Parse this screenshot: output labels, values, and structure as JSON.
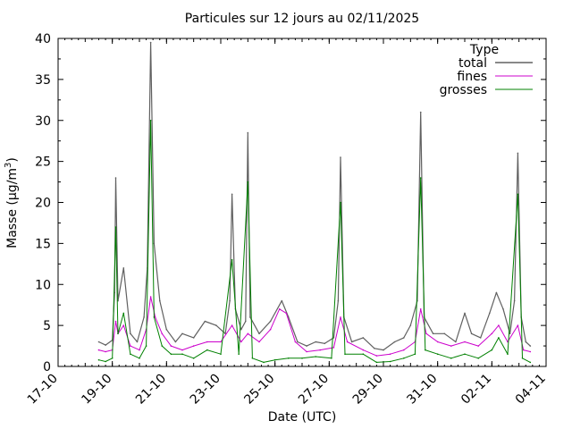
{
  "chart_data": {
    "type": "line",
    "title": "Particules sur 12 jours au 02/11/2025",
    "xlabel": "Date (UTC)",
    "ylabel": "Masse (µg/m³)",
    "ylabel_main": "Masse (µg/m",
    "ylabel_sup": "3",
    "ylabel_close": ")",
    "xlim": [
      "2025-10-17",
      "2025-11-04"
    ],
    "ylim": [
      0,
      40
    ],
    "x_ticks": [
      "17-10",
      "19-10",
      "21-10",
      "23-10",
      "25-10",
      "27-10",
      "29-10",
      "31-10",
      "02-11",
      "04-11"
    ],
    "y_ticks": [
      "0",
      "5",
      "10",
      "15",
      "20",
      "25",
      "30",
      "35",
      "40"
    ],
    "legend": {
      "title": "Type",
      "placement": "top-right"
    },
    "grid": false,
    "series": [
      {
        "name": "total",
        "color": "#606060",
        "points": [
          [
            "2025-10-18 12:00",
            3.0
          ],
          [
            "2025-10-18 18:00",
            2.6
          ],
          [
            "2025-10-19 00:00",
            3.2
          ],
          [
            "2025-10-19 02:00",
            9.0
          ],
          [
            "2025-10-19 03:00",
            23.0
          ],
          [
            "2025-10-19 05:00",
            8.0
          ],
          [
            "2025-10-19 10:00",
            12.0
          ],
          [
            "2025-10-19 16:00",
            4.0
          ],
          [
            "2025-10-19 22:00",
            3.0
          ],
          [
            "2025-10-20 04:00",
            6.0
          ],
          [
            "2025-10-20 07:00",
            12.0
          ],
          [
            "2025-10-20 10:00",
            39.5
          ],
          [
            "2025-10-20 13:00",
            15.0
          ],
          [
            "2025-10-20 18:00",
            8.0
          ],
          [
            "2025-10-21 00:00",
            4.5
          ],
          [
            "2025-10-21 08:00",
            3.0
          ],
          [
            "2025-10-21 14:00",
            4.0
          ],
          [
            "2025-10-22 00:00",
            3.5
          ],
          [
            "2025-10-22 10:00",
            5.5
          ],
          [
            "2025-10-22 20:00",
            5.0
          ],
          [
            "2025-10-23 04:00",
            4.0
          ],
          [
            "2025-10-23 08:00",
            8.0
          ],
          [
            "2025-10-23 10:00",
            21.0
          ],
          [
            "2025-10-23 13:00",
            7.0
          ],
          [
            "2025-10-23 18:00",
            4.5
          ],
          [
            "2025-10-23 22:00",
            5.5
          ],
          [
            "2025-10-24 00:00",
            28.5
          ],
          [
            "2025-10-24 02:00",
            6.0
          ],
          [
            "2025-10-24 10:00",
            4.0
          ],
          [
            "2025-10-24 20:00",
            5.5
          ],
          [
            "2025-10-25 06:00",
            8.0
          ],
          [
            "2025-10-25 12:00",
            6.0
          ],
          [
            "2025-10-25 20:00",
            3.0
          ],
          [
            "2025-10-26 04:00",
            2.5
          ],
          [
            "2025-10-26 12:00",
            3.0
          ],
          [
            "2025-10-26 20:00",
            2.8
          ],
          [
            "2025-10-27 04:00",
            3.5
          ],
          [
            "2025-10-27 08:00",
            8.0
          ],
          [
            "2025-10-27 10:00",
            25.5
          ],
          [
            "2025-10-27 13:00",
            6.0
          ],
          [
            "2025-10-27 20:00",
            3.0
          ],
          [
            "2025-10-28 06:00",
            3.5
          ],
          [
            "2025-10-28 16:00",
            2.2
          ],
          [
            "2025-10-29 00:00",
            2.0
          ],
          [
            "2025-10-29 10:00",
            3.0
          ],
          [
            "2025-10-29 18:00",
            3.5
          ],
          [
            "2025-10-30 00:00",
            5.0
          ],
          [
            "2025-10-30 06:00",
            8.0
          ],
          [
            "2025-10-30 09:00",
            31.0
          ],
          [
            "2025-10-30 12:00",
            6.0
          ],
          [
            "2025-10-30 20:00",
            4.0
          ],
          [
            "2025-10-31 06:00",
            4.0
          ],
          [
            "2025-10-31 16:00",
            3.0
          ],
          [
            "2025-11-01 00:00",
            6.5
          ],
          [
            "2025-11-01 06:00",
            4.0
          ],
          [
            "2025-11-01 14:00",
            3.5
          ],
          [
            "2025-11-01 22:00",
            6.5
          ],
          [
            "2025-11-02 04:00",
            9.0
          ],
          [
            "2025-11-02 10:00",
            7.0
          ],
          [
            "2025-11-02 16:00",
            4.0
          ],
          [
            "2025-11-02 20:00",
            8.0
          ],
          [
            "2025-11-02 23:00",
            26.0
          ],
          [
            "2025-11-03 02:00",
            6.0
          ],
          [
            "2025-11-03 06:00",
            3.0
          ],
          [
            "2025-11-03 10:00",
            2.5
          ]
        ]
      },
      {
        "name": "fines",
        "color": "#cc00cc",
        "points": [
          [
            "2025-10-18 12:00",
            2.0
          ],
          [
            "2025-10-18 18:00",
            1.8
          ],
          [
            "2025-10-19 00:00",
            2.0
          ],
          [
            "2025-10-19 03:00",
            5.5
          ],
          [
            "2025-10-19 05:00",
            4.0
          ],
          [
            "2025-10-19 10:00",
            5.0
          ],
          [
            "2025-10-19 16:00",
            2.5
          ],
          [
            "2025-10-20 00:00",
            2.0
          ],
          [
            "2025-10-20 06:00",
            4.5
          ],
          [
            "2025-10-20 10:00",
            8.5
          ],
          [
            "2025-10-20 14:00",
            6.0
          ],
          [
            "2025-10-20 20:00",
            4.0
          ],
          [
            "2025-10-21 04:00",
            2.5
          ],
          [
            "2025-10-21 14:00",
            2.0
          ],
          [
            "2025-10-22 00:00",
            2.5
          ],
          [
            "2025-10-22 12:00",
            3.0
          ],
          [
            "2025-10-23 00:00",
            3.0
          ],
          [
            "2025-10-23 10:00",
            5.0
          ],
          [
            "2025-10-23 18:00",
            3.0
          ],
          [
            "2025-10-24 00:00",
            4.0
          ],
          [
            "2025-10-24 10:00",
            3.0
          ],
          [
            "2025-10-24 20:00",
            4.5
          ],
          [
            "2025-10-25 04:00",
            7.0
          ],
          [
            "2025-10-25 10:00",
            6.5
          ],
          [
            "2025-10-25 18:00",
            3.0
          ],
          [
            "2025-10-26 04:00",
            1.8
          ],
          [
            "2025-10-26 16:00",
            2.0
          ],
          [
            "2025-10-27 04:00",
            2.3
          ],
          [
            "2025-10-27 10:00",
            6.0
          ],
          [
            "2025-10-27 16:00",
            3.0
          ],
          [
            "2025-10-28 06:00",
            2.0
          ],
          [
            "2025-10-28 18:00",
            1.3
          ],
          [
            "2025-10-29 06:00",
            1.5
          ],
          [
            "2025-10-29 18:00",
            2.0
          ],
          [
            "2025-10-30 04:00",
            3.0
          ],
          [
            "2025-10-30 09:00",
            7.0
          ],
          [
            "2025-10-30 14:00",
            4.0
          ],
          [
            "2025-10-31 00:00",
            3.0
          ],
          [
            "2025-10-31 12:00",
            2.5
          ],
          [
            "2025-11-01 00:00",
            3.0
          ],
          [
            "2025-11-01 12:00",
            2.5
          ],
          [
            "2025-11-02 00:00",
            4.0
          ],
          [
            "2025-11-02 06:00",
            5.0
          ],
          [
            "2025-11-02 14:00",
            3.0
          ],
          [
            "2025-11-02 23:00",
            5.0
          ],
          [
            "2025-11-03 04:00",
            2.0
          ],
          [
            "2025-11-03 10:00",
            1.8
          ]
        ]
      },
      {
        "name": "grosses",
        "color": "#008000",
        "points": [
          [
            "2025-10-18 12:00",
            0.8
          ],
          [
            "2025-10-18 18:00",
            0.6
          ],
          [
            "2025-10-19 00:00",
            1.0
          ],
          [
            "2025-10-19 03:00",
            17.0
          ],
          [
            "2025-10-19 05:00",
            4.0
          ],
          [
            "2025-10-19 10:00",
            6.5
          ],
          [
            "2025-10-19 16:00",
            1.5
          ],
          [
            "2025-10-20 00:00",
            1.0
          ],
          [
            "2025-10-20 06:00",
            2.5
          ],
          [
            "2025-10-20 10:00",
            30.0
          ],
          [
            "2025-10-20 13:00",
            6.0
          ],
          [
            "2025-10-20 20:00",
            2.5
          ],
          [
            "2025-10-21 04:00",
            1.5
          ],
          [
            "2025-10-21 14:00",
            1.5
          ],
          [
            "2025-10-22 00:00",
            1.0
          ],
          [
            "2025-10-22 12:00",
            2.0
          ],
          [
            "2025-10-23 00:00",
            1.5
          ],
          [
            "2025-10-23 10:00",
            13.0
          ],
          [
            "2025-10-23 16:00",
            1.5
          ],
          [
            "2025-10-24 00:00",
            22.5
          ],
          [
            "2025-10-24 04:00",
            1.0
          ],
          [
            "2025-10-24 14:00",
            0.5
          ],
          [
            "2025-10-25 00:00",
            0.8
          ],
          [
            "2025-10-25 12:00",
            1.0
          ],
          [
            "2025-10-26 00:00",
            1.0
          ],
          [
            "2025-10-26 12:00",
            1.2
          ],
          [
            "2025-10-27 02:00",
            1.0
          ],
          [
            "2025-10-27 10:00",
            20.0
          ],
          [
            "2025-10-27 14:00",
            1.5
          ],
          [
            "2025-10-28 06:00",
            1.5
          ],
          [
            "2025-10-28 18:00",
            0.5
          ],
          [
            "2025-10-29 06:00",
            0.6
          ],
          [
            "2025-10-29 18:00",
            1.0
          ],
          [
            "2025-10-30 04:00",
            1.5
          ],
          [
            "2025-10-30 09:00",
            23.0
          ],
          [
            "2025-10-30 13:00",
            2.0
          ],
          [
            "2025-10-31 00:00",
            1.5
          ],
          [
            "2025-10-31 12:00",
            1.0
          ],
          [
            "2025-11-01 00:00",
            1.5
          ],
          [
            "2025-11-01 12:00",
            1.0
          ],
          [
            "2025-11-02 00:00",
            2.0
          ],
          [
            "2025-11-02 06:00",
            3.5
          ],
          [
            "2025-11-02 14:00",
            1.5
          ],
          [
            "2025-11-02 23:00",
            21.0
          ],
          [
            "2025-11-03 03:00",
            1.0
          ],
          [
            "2025-11-03 10:00",
            0.5
          ]
        ]
      }
    ]
  }
}
